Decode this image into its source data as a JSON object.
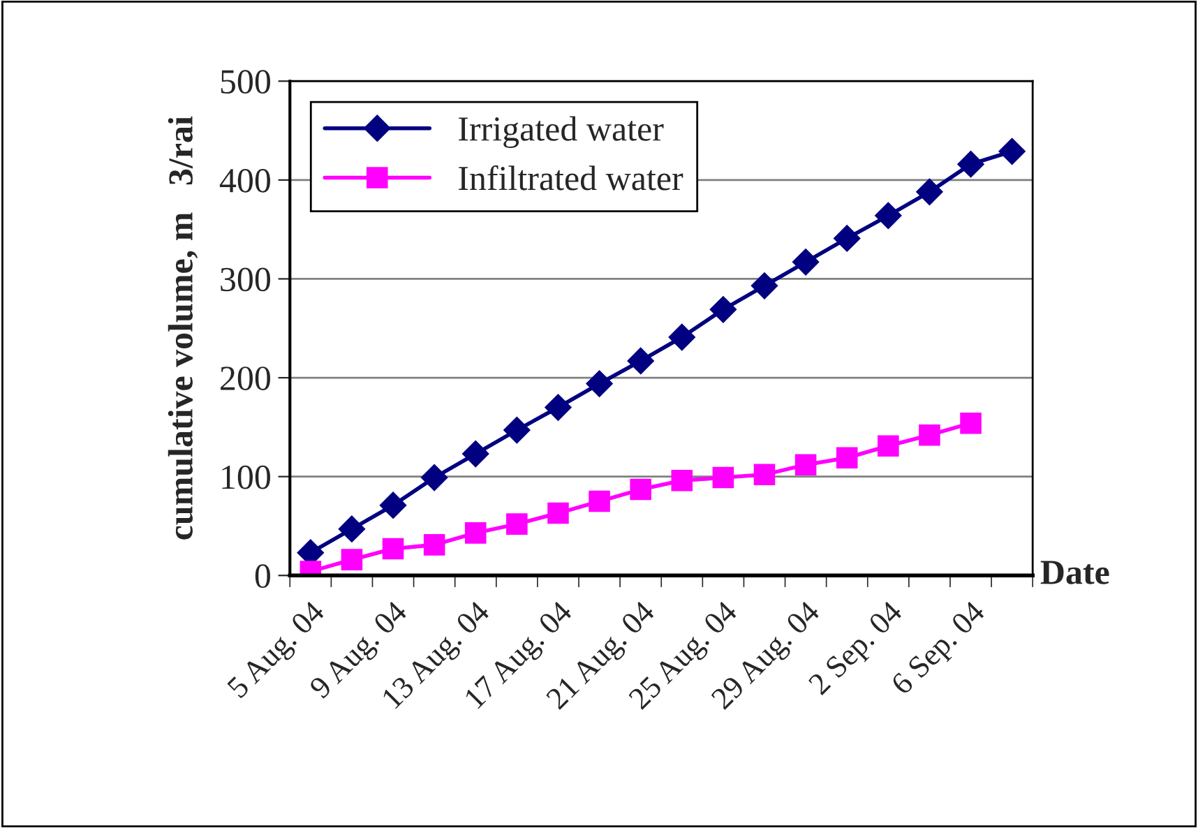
{
  "chart_data": {
    "type": "line",
    "xlabel": "Date",
    "ylabel": "cumulative volume, m   3/rai",
    "categories": [
      "5 Aug. 04",
      null,
      "9 Aug. 04",
      null,
      "13 Aug. 04",
      null,
      "17 Aug. 04",
      null,
      "21 Aug. 04",
      null,
      "25 Aug. 04",
      null,
      "29 Aug. 04",
      null,
      "2 Sep. 04",
      null,
      "6 Sep. 04",
      null
    ],
    "series": [
      {
        "name": "Irrigated water",
        "color": "#000080",
        "marker": "diamond",
        "values": [
          23,
          47,
          71,
          99,
          123,
          147,
          170,
          194,
          217,
          241,
          269,
          293,
          317,
          341,
          364,
          388,
          416,
          429
        ]
      },
      {
        "name": "Infiltrated water",
        "color": "#ff00ff",
        "marker": "square",
        "values": [
          4,
          16,
          27,
          31,
          43,
          52,
          63,
          75,
          87,
          96,
          99,
          102,
          112,
          119,
          131,
          142,
          154,
          null
        ]
      }
    ],
    "ylim": [
      0,
      500
    ],
    "yticks": [
      0,
      100,
      200,
      300,
      400,
      500
    ],
    "grid": "y",
    "legend": "top left",
    "line_style": "solid"
  }
}
